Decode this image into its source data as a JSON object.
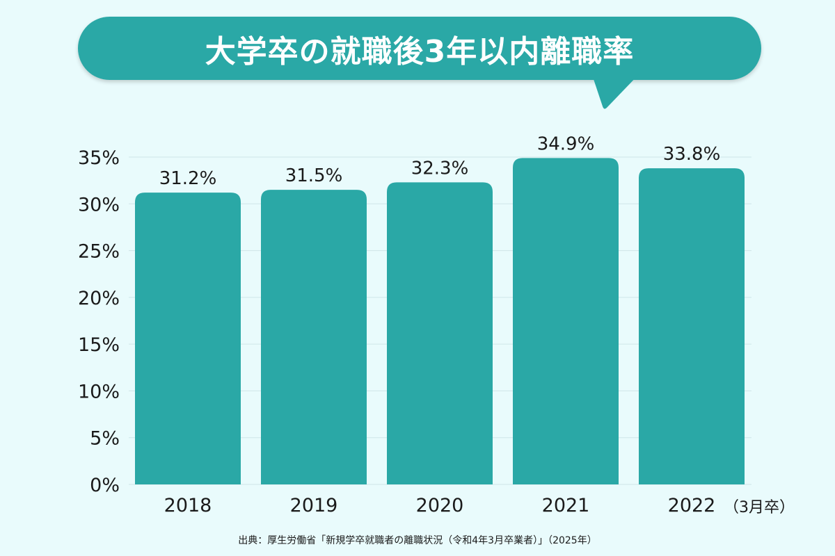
{
  "title": "大学卒の就職後3年以内離職率",
  "unit_note": "（3月卒）",
  "source": "出典：厚生労働省「新規学卒就職者の離職状況（令和4年3月卒業者）」（2025年）",
  "colors": {
    "bar": "#2aa8a6",
    "background": "#e9fbfc",
    "grid": "#cfe6e8"
  },
  "chart_data": {
    "type": "bar",
    "title": "大学卒の就職後3年以内離職率",
    "xlabel": "",
    "ylabel": "",
    "categories": [
      "2018",
      "2019",
      "2020",
      "2021",
      "2022"
    ],
    "values": [
      31.2,
      31.5,
      32.3,
      34.9,
      33.8
    ],
    "value_labels": [
      "31.2%",
      "31.5%",
      "32.3%",
      "34.9%",
      "33.8%"
    ],
    "ylim": [
      0,
      35
    ],
    "yticks": [
      0,
      5,
      10,
      15,
      20,
      25,
      30,
      35
    ],
    "ytick_labels": [
      "0%",
      "5%",
      "10%",
      "15%",
      "20%",
      "25%",
      "30%",
      "35%"
    ],
    "grid": true,
    "legend": "none"
  }
}
